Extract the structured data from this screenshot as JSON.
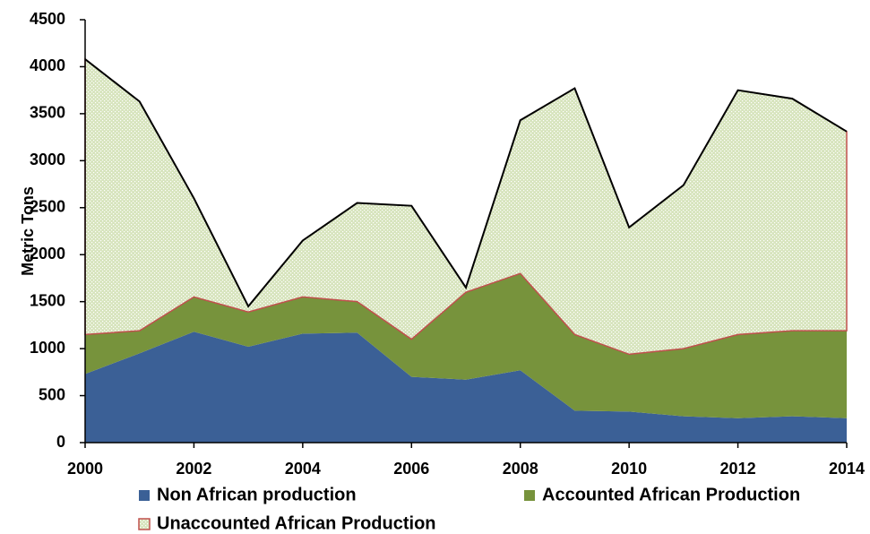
{
  "chart_data": {
    "type": "stacked_area",
    "y_label": "Metric Tons",
    "x": [
      2000,
      2001,
      2002,
      2003,
      2004,
      2005,
      2006,
      2007,
      2008,
      2009,
      2010,
      2011,
      2012,
      2013,
      2014
    ],
    "xlim": [
      2000,
      2014
    ],
    "xticks": [
      2000,
      2002,
      2004,
      2006,
      2008,
      2010,
      2012,
      2014
    ],
    "ylim": [
      0,
      4500
    ],
    "yticks": [
      0,
      500,
      1000,
      1500,
      2000,
      2500,
      3000,
      3500,
      4000,
      4500
    ],
    "grid": false,
    "legend": "bottom",
    "series": [
      {
        "name": "Non African production",
        "color": "#3b6096",
        "values": [
          730,
          950,
          1180,
          1020,
          1160,
          1170,
          700,
          670,
          770,
          340,
          330,
          280,
          260,
          280,
          260
        ]
      },
      {
        "name": "Accounted African Production",
        "color": "#77933c",
        "values": [
          420,
          240,
          370,
          370,
          390,
          330,
          400,
          930,
          1030,
          810,
          610,
          720,
          890,
          910,
          930
        ]
      },
      {
        "name": "Unaccounted African Production",
        "color": "#d7e4bd",
        "line_color": "#c0504d",
        "top_color": "#000000",
        "values": [
          2930,
          2440,
          1050,
          60,
          600,
          1050,
          1420,
          50,
          1630,
          2620,
          1350,
          1740,
          2600,
          2470,
          2120
        ]
      }
    ]
  }
}
